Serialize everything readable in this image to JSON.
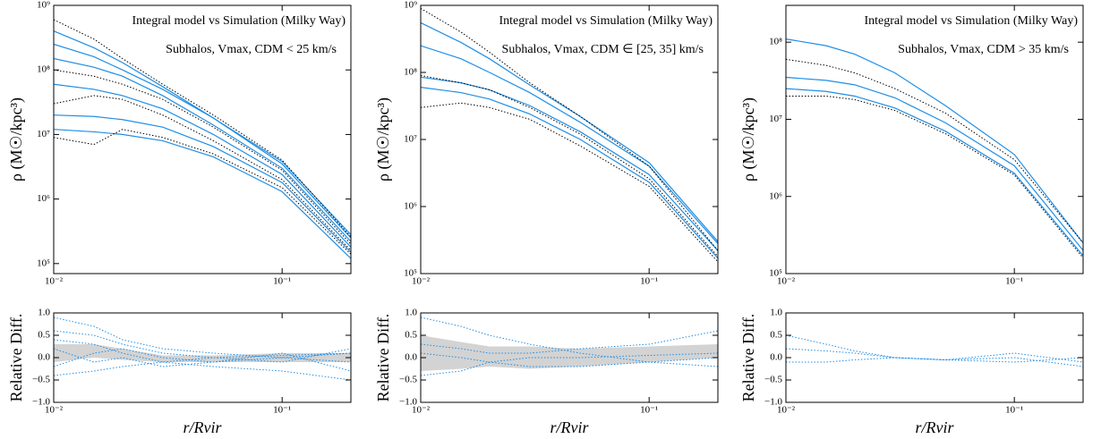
{
  "chart_data": [
    {
      "type": "line",
      "title": "Integral model vs Simulation (Milky Way)",
      "subtitle": "Subhalos,  Vmax, CDM < 25 km/s",
      "ylabel": "ρ (M☉/kpc³)",
      "xscale": "log",
      "yscale": "log",
      "x": [
        0.01,
        0.015,
        0.02,
        0.03,
        0.05,
        0.1,
        0.2
      ],
      "xlim": [
        0.01,
        0.2
      ],
      "xticks": [
        {
          "value": 0.01,
          "label": "10⁻²"
        },
        {
          "value": 0.1,
          "label": "10⁻¹"
        }
      ],
      "ylim": [
        70000,
        1000000000
      ],
      "yticks": [
        {
          "value": 100000,
          "label": "10⁵"
        },
        {
          "value": 1000000,
          "label": "10⁶"
        },
        {
          "value": 10000000,
          "label": "10⁷"
        },
        {
          "value": 100000000,
          "label": "10⁸"
        },
        {
          "value": 1000000000,
          "label": "10⁹"
        }
      ],
      "series": [
        {
          "color": "#1f8ee6",
          "linestyle": "solid",
          "values": [
            400000000,
            220000000,
            130000000,
            55000000,
            18000000,
            3500000,
            250000
          ]
        },
        {
          "color": "#1f8ee6",
          "linestyle": "solid",
          "values": [
            250000000,
            160000000,
            100000000,
            50000000,
            18000000,
            3800000,
            280000
          ]
        },
        {
          "color": "#1f8ee6",
          "linestyle": "solid",
          "values": [
            150000000,
            110000000,
            80000000,
            40000000,
            14000000,
            3000000,
            220000
          ]
        },
        {
          "color": "#1f8ee6",
          "linestyle": "solid",
          "values": [
            60000000,
            50000000,
            40000000,
            25000000,
            10000000,
            2400000,
            180000
          ]
        },
        {
          "color": "#1f8ee6",
          "linestyle": "solid",
          "values": [
            20000000,
            19000000,
            17000000,
            13000000,
            6500000,
            1800000,
            150000
          ]
        },
        {
          "color": "#1f8ee6",
          "linestyle": "solid",
          "values": [
            12000000,
            11000000,
            10000000,
            8000000,
            4500000,
            1300000,
            120000
          ]
        },
        {
          "color": "#000000",
          "linestyle": "dotted",
          "values": [
            600000000,
            300000000,
            150000000,
            60000000,
            20000000,
            4000000,
            260000
          ]
        },
        {
          "color": "#000000",
          "linestyle": "dotted",
          "values": [
            100000000,
            80000000,
            60000000,
            35000000,
            13000000,
            2800000,
            200000
          ]
        },
        {
          "color": "#000000",
          "linestyle": "dotted",
          "values": [
            30000000,
            40000000,
            35000000,
            20000000,
            8000000,
            2000000,
            160000
          ]
        },
        {
          "color": "#000000",
          "linestyle": "dotted",
          "values": [
            9000000,
            7000000,
            12000000,
            9000000,
            5000000,
            1500000,
            140000
          ]
        }
      ]
    },
    {
      "type": "line",
      "title": "Integral model vs Simulation (Milky Way)",
      "subtitle": "Subhalos,  Vmax, CDM ∈ [25, 35] km/s",
      "ylabel": "ρ (M☉/kpc³)",
      "xscale": "log",
      "yscale": "log",
      "x": [
        0.01,
        0.015,
        0.02,
        0.03,
        0.05,
        0.1,
        0.2
      ],
      "xlim": [
        0.01,
        0.2
      ],
      "xticks": [
        {
          "value": 0.01,
          "label": "10⁻²"
        },
        {
          "value": 0.1,
          "label": "10⁻¹"
        }
      ],
      "ylim": [
        100000,
        1000000000
      ],
      "yticks": [
        {
          "value": 100000,
          "label": "10⁵"
        },
        {
          "value": 1000000,
          "label": "10⁶"
        },
        {
          "value": 10000000,
          "label": "10⁷"
        },
        {
          "value": 100000000,
          "label": "10⁸"
        },
        {
          "value": 1000000000,
          "label": "10⁹"
        }
      ],
      "series": [
        {
          "color": "#1f8ee6",
          "linestyle": "solid",
          "values": [
            550000000,
            280000000,
            160000000,
            65000000,
            22000000,
            4500000,
            300000
          ]
        },
        {
          "color": "#1f8ee6",
          "linestyle": "solid",
          "values": [
            250000000,
            160000000,
            100000000,
            50000000,
            18000000,
            4000000,
            280000
          ]
        },
        {
          "color": "#1f8ee6",
          "linestyle": "solid",
          "values": [
            85000000,
            70000000,
            55000000,
            32000000,
            13000000,
            3000000,
            220000
          ]
        },
        {
          "color": "#1f8ee6",
          "linestyle": "solid",
          "values": [
            60000000,
            50000000,
            40000000,
            24000000,
            10000000,
            2300000,
            170000
          ]
        },
        {
          "color": "#000000",
          "linestyle": "dotted",
          "values": [
            900000000,
            400000000,
            200000000,
            70000000,
            22000000,
            4000000,
            220000
          ]
        },
        {
          "color": "#000000",
          "linestyle": "dotted",
          "values": [
            90000000,
            70000000,
            55000000,
            30000000,
            12000000,
            2600000,
            180000
          ]
        },
        {
          "color": "#000000",
          "linestyle": "dotted",
          "values": [
            30000000,
            35000000,
            30000000,
            20000000,
            8000000,
            2000000,
            150000
          ]
        }
      ]
    },
    {
      "type": "line",
      "title": "Integral model vs Simulation (Milky Way)",
      "subtitle": "Subhalos,  Vmax, CDM > 35 km/s",
      "ylabel": "ρ (M☉/kpc³)",
      "xscale": "log",
      "yscale": "log",
      "x": [
        0.01,
        0.015,
        0.02,
        0.03,
        0.05,
        0.1,
        0.2
      ],
      "xlim": [
        0.01,
        0.2
      ],
      "xticks": [
        {
          "value": 0.01,
          "label": "10⁻²"
        },
        {
          "value": 0.1,
          "label": "10⁻¹"
        }
      ],
      "ylim": [
        100000,
        300000000
      ],
      "yticks": [
        {
          "value": 100000,
          "label": "10⁵"
        },
        {
          "value": 1000000,
          "label": "10⁶"
        },
        {
          "value": 10000000,
          "label": "10⁷"
        },
        {
          "value": 100000000,
          "label": "10⁸"
        }
      ],
      "series": [
        {
          "color": "#1f8ee6",
          "linestyle": "solid",
          "values": [
            110000000,
            90000000,
            70000000,
            40000000,
            15000000,
            3500000,
            250000
          ]
        },
        {
          "color": "#1f8ee6",
          "linestyle": "solid",
          "values": [
            35000000,
            32000000,
            28000000,
            19000000,
            9000000,
            2500000,
            200000
          ]
        },
        {
          "color": "#1f8ee6",
          "linestyle": "solid",
          "values": [
            25000000,
            23000000,
            20000000,
            14000000,
            7000000,
            2000000,
            170000
          ]
        },
        {
          "color": "#000000",
          "linestyle": "dotted",
          "values": [
            60000000,
            50000000,
            40000000,
            25000000,
            12000000,
            3000000,
            250000
          ]
        },
        {
          "color": "#000000",
          "linestyle": "dotted",
          "values": [
            20000000,
            20000000,
            18000000,
            13000000,
            6500000,
            1900000,
            160000
          ]
        }
      ]
    },
    {
      "type": "line",
      "ylabel": "Relative Diff.",
      "xlabel": "r/Rvir",
      "xscale": "log",
      "x": [
        0.01,
        0.015,
        0.02,
        0.03,
        0.05,
        0.1,
        0.2
      ],
      "xlim": [
        0.01,
        0.2
      ],
      "xticks": [
        {
          "value": 0.01,
          "label": "10⁻²"
        },
        {
          "value": 0.1,
          "label": "10⁻¹"
        }
      ],
      "ylim": [
        -1,
        1
      ],
      "yticks": [
        {
          "value": -1,
          "label": "−1.0"
        },
        {
          "value": -0.5,
          "label": "−0.5"
        },
        {
          "value": 0,
          "label": "0.0"
        },
        0.5,
        {
          "value": 1,
          "label": "1.0"
        }
      ],
      "band": {
        "color": "#d3d3d3",
        "lower": [
          -0.1,
          0,
          -0.05,
          -0.1,
          -0.1,
          -0.1,
          -0.1
        ],
        "upper": [
          0.3,
          0.3,
          0.2,
          0.05,
          0.05,
          0.1,
          0.1
        ]
      },
      "series": [
        {
          "color": "#1f8ee6",
          "linestyle": "dotted",
          "values": [
            0.6,
            0.5,
            0.3,
            0.1,
            0,
            0.05,
            0.1
          ]
        },
        {
          "color": "#1f8ee6",
          "linestyle": "dotted",
          "values": [
            -0.2,
            0.1,
            0.2,
            0,
            -0.1,
            0,
            -0.1
          ]
        },
        {
          "color": "#1f8ee6",
          "linestyle": "dotted",
          "values": [
            0.9,
            0.7,
            0.4,
            0.2,
            0.1,
            0,
            0.1
          ]
        },
        {
          "color": "#1f8ee6",
          "linestyle": "dotted",
          "values": [
            0.2,
            -0.1,
            0,
            -0.2,
            -0.1,
            0.1,
            -0.3
          ]
        },
        {
          "color": "#1f8ee6",
          "linestyle": "dotted",
          "values": [
            0.4,
            0.3,
            0.1,
            -0.1,
            0,
            -0.1,
            0.2
          ]
        },
        {
          "color": "#1f8ee6",
          "linestyle": "dotted",
          "values": [
            -0.4,
            -0.3,
            -0.2,
            -0.1,
            -0.2,
            -0.3,
            -0.5
          ]
        }
      ]
    },
    {
      "type": "line",
      "ylabel": "Relative Diff.",
      "xlabel": "r/Rvir",
      "xscale": "log",
      "x": [
        0.01,
        0.015,
        0.02,
        0.03,
        0.05,
        0.1,
        0.2
      ],
      "xlim": [
        0.01,
        0.2
      ],
      "xticks": [
        {
          "value": 0.01,
          "label": "10⁻²"
        },
        {
          "value": 0.1,
          "label": "10⁻¹"
        }
      ],
      "ylim": [
        -1,
        1
      ],
      "yticks": [
        {
          "value": -1,
          "label": "−1.0"
        },
        {
          "value": -0.5,
          "label": "−0.5"
        },
        {
          "value": 0,
          "label": "0.0"
        },
        0.5,
        {
          "value": 1,
          "label": "1.0"
        }
      ],
      "band": {
        "color": "#d3d3d3",
        "lower": [
          -0.3,
          -0.25,
          -0.2,
          -0.25,
          -0.2,
          -0.1,
          0
        ],
        "upper": [
          0.5,
          0.35,
          0.25,
          0.25,
          0.2,
          0.25,
          0.3
        ]
      },
      "series": [
        {
          "color": "#1f8ee6",
          "linestyle": "dotted",
          "values": [
            0.9,
            0.7,
            0.5,
            0.3,
            0.1,
            -0.1,
            -0.2
          ]
        },
        {
          "color": "#1f8ee6",
          "linestyle": "dotted",
          "values": [
            0.3,
            0.2,
            0.1,
            0.1,
            0.2,
            0.3,
            0.6
          ]
        },
        {
          "color": "#1f8ee6",
          "linestyle": "dotted",
          "values": [
            -0.4,
            -0.3,
            -0.1,
            0,
            0,
            0.05,
            0.1
          ]
        },
        {
          "color": "#1f8ee6",
          "linestyle": "dotted",
          "values": [
            0.1,
            0,
            -0.1,
            -0.2,
            -0.2,
            -0.1,
            0
          ]
        }
      ]
    },
    {
      "type": "line",
      "ylabel": "Relative Diff.",
      "xlabel": "r/Rvir",
      "xscale": "log",
      "x": [
        0.01,
        0.015,
        0.02,
        0.03,
        0.05,
        0.1,
        0.2
      ],
      "xlim": [
        0.01,
        0.2
      ],
      "xticks": [
        {
          "value": 0.01,
          "label": "10⁻²"
        },
        {
          "value": 0.1,
          "label": "10⁻¹"
        }
      ],
      "ylim": [
        -1,
        1
      ],
      "yticks": [
        {
          "value": -1,
          "label": "−1.0"
        },
        {
          "value": -0.5,
          "label": "−0.5"
        },
        {
          "value": 0,
          "label": "0.0"
        },
        0.5,
        {
          "value": 1,
          "label": "1.0"
        }
      ],
      "series": [
        {
          "color": "#1f8ee6",
          "linestyle": "dotted",
          "values": [
            0.5,
            0.3,
            0.15,
            0,
            -0.05,
            0.1,
            -0.1
          ]
        },
        {
          "color": "#1f8ee6",
          "linestyle": "dotted",
          "values": [
            0.2,
            0.15,
            0.1,
            0,
            -0.05,
            0,
            -0.2
          ]
        },
        {
          "color": "#1f8ee6",
          "linestyle": "dotted",
          "values": [
            -0.1,
            -0.1,
            -0.05,
            0,
            -0.05,
            -0.1,
            0
          ]
        }
      ]
    }
  ]
}
